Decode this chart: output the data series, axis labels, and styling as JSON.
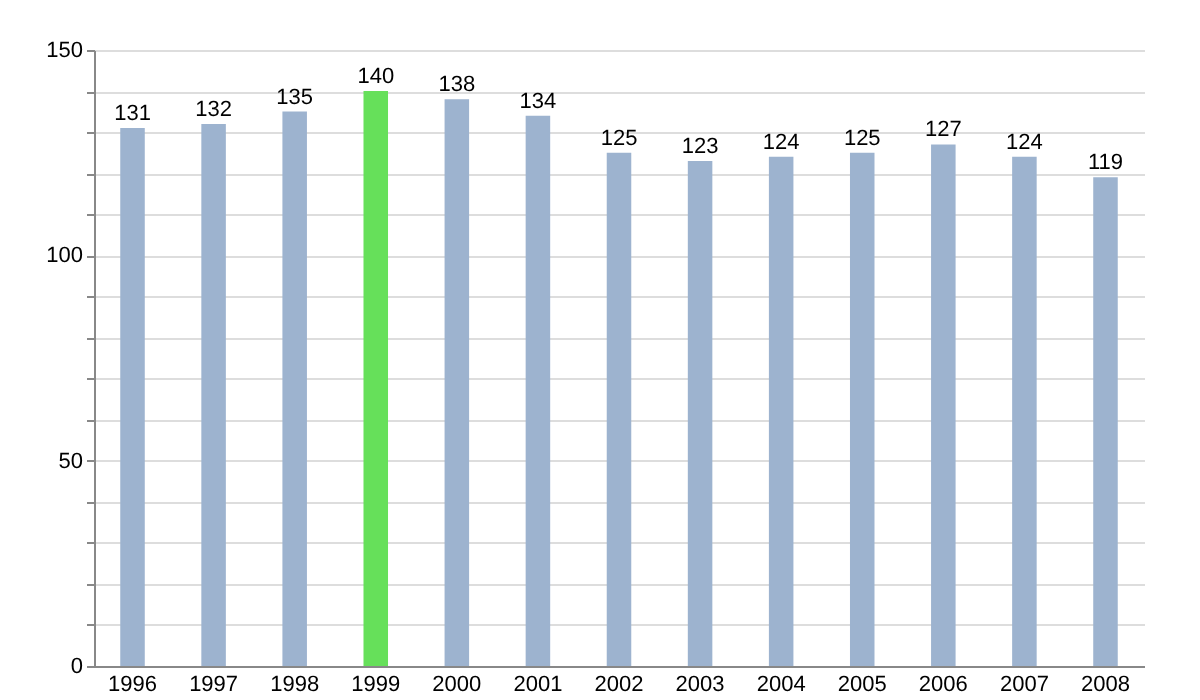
{
  "chart_data": {
    "type": "bar",
    "categories": [
      "1996",
      "1997",
      "1998",
      "1999",
      "2000",
      "2001",
      "2002",
      "2003",
      "2004",
      "2005",
      "2006",
      "2007",
      "2008"
    ],
    "values": [
      131,
      132,
      135,
      140,
      138,
      134,
      125,
      123,
      124,
      125,
      127,
      124,
      119
    ],
    "colors": [
      "#9db3cf",
      "#9db3cf",
      "#9db3cf",
      "#66e05a",
      "#9db3cf",
      "#9db3cf",
      "#9db3cf",
      "#9db3cf",
      "#9db3cf",
      "#9db3cf",
      "#9db3cf",
      "#9db3cf",
      "#9db3cf"
    ],
    "ylim": [
      0,
      150
    ],
    "yticks": [
      0,
      {
        "value": 10,
        "label": null
      },
      {
        "value": 20,
        "label": null
      },
      {
        "value": 30,
        "label": null
      },
      {
        "value": 40,
        "label": null
      },
      50,
      {
        "value": 60,
        "label": null
      },
      {
        "value": 70,
        "label": null
      },
      {
        "value": 80,
        "label": null
      },
      {
        "value": 90,
        "label": null
      },
      100,
      {
        "value": 110,
        "label": null
      },
      {
        "value": 120,
        "label": null
      },
      {
        "value": 130,
        "label": null
      },
      {
        "value": 140,
        "label": null
      },
      150
    ],
    "grid": true,
    "data_labels": true
  }
}
